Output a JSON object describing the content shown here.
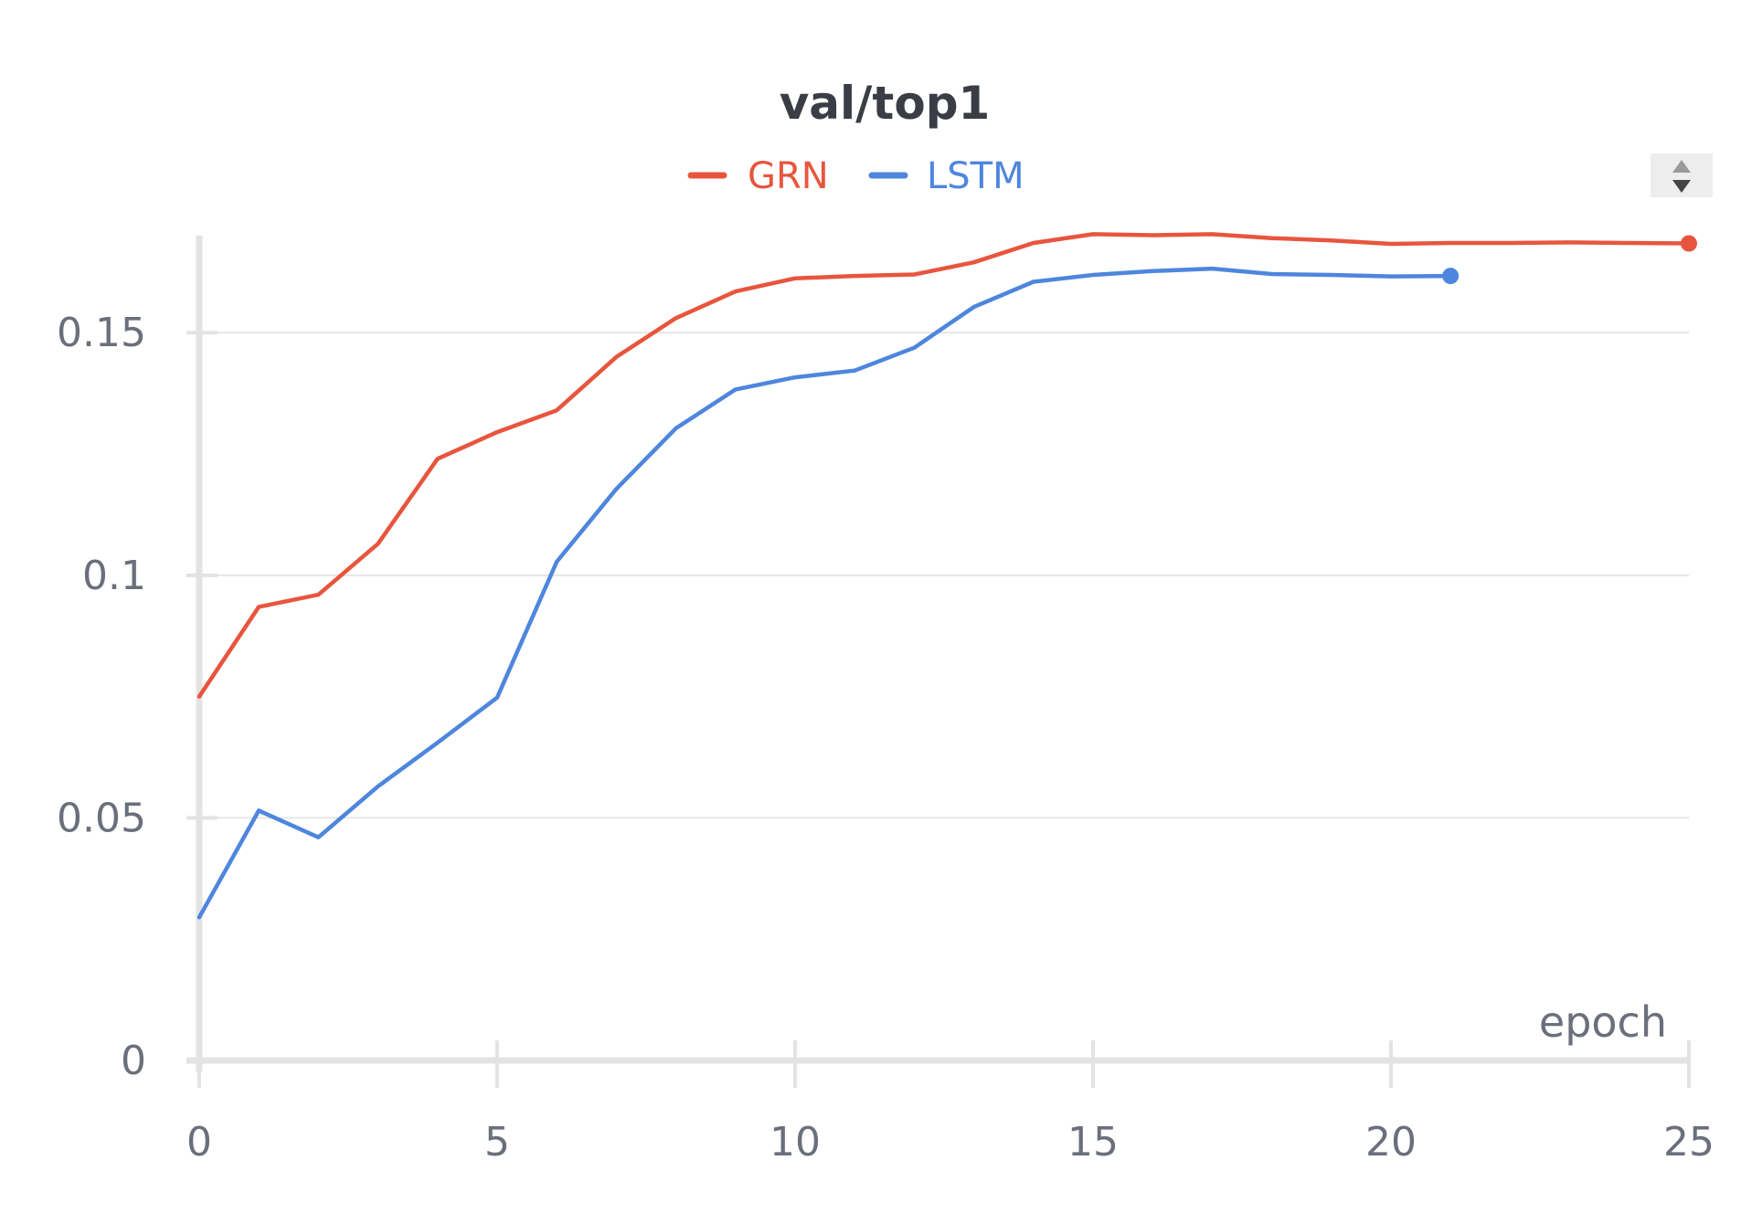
{
  "chart_data": {
    "type": "line",
    "title": "val/top1",
    "xlabel": "epoch",
    "ylabel": "",
    "xlim": [
      0,
      25
    ],
    "ylim": [
      0,
      0.17
    ],
    "xticks": [
      0,
      5,
      10,
      15,
      20,
      25
    ],
    "xtick_labels": [
      "0",
      "5",
      "10",
      "15",
      "20",
      "25"
    ],
    "yticks": [
      0,
      0.05,
      0.1,
      0.15
    ],
    "ytick_labels": [
      "0",
      "0.05",
      "0.1",
      "0.15"
    ],
    "grid": true,
    "legend_position": "top-center",
    "series": [
      {
        "name": "GRN",
        "color": "#e8553e",
        "x": [
          0,
          1,
          2,
          3,
          4,
          5,
          6,
          7,
          8,
          9,
          10,
          11,
          12,
          13,
          14,
          15,
          16,
          17,
          18,
          19,
          20,
          21,
          22,
          23,
          24,
          25
        ],
        "y": [
          0.075,
          0.0935,
          0.096,
          0.1065,
          0.124,
          0.1295,
          0.134,
          0.145,
          0.153,
          0.1585,
          0.1612,
          0.1617,
          0.162,
          0.1645,
          0.1685,
          0.1703,
          0.1701,
          0.1703,
          0.1695,
          0.169,
          0.1683,
          0.1685,
          0.1685,
          0.1686,
          0.1685,
          0.1684
        ]
      },
      {
        "name": "LSTM",
        "color": "#4e86dd",
        "x": [
          0,
          1,
          2,
          3,
          4,
          5,
          6,
          7,
          8,
          9,
          10,
          11,
          12,
          13,
          14,
          15,
          16,
          17,
          18,
          19,
          20,
          21
        ],
        "y": [
          0.0295,
          0.0515,
          0.046,
          0.0565,
          0.0655,
          0.0748,
          0.1028,
          0.1178,
          0.1303,
          0.1383,
          0.1408,
          0.1422,
          0.1469,
          0.1553,
          0.1605,
          0.1619,
          0.1627,
          0.1632,
          0.1621,
          0.1619,
          0.1616,
          0.1617
        ]
      }
    ]
  }
}
